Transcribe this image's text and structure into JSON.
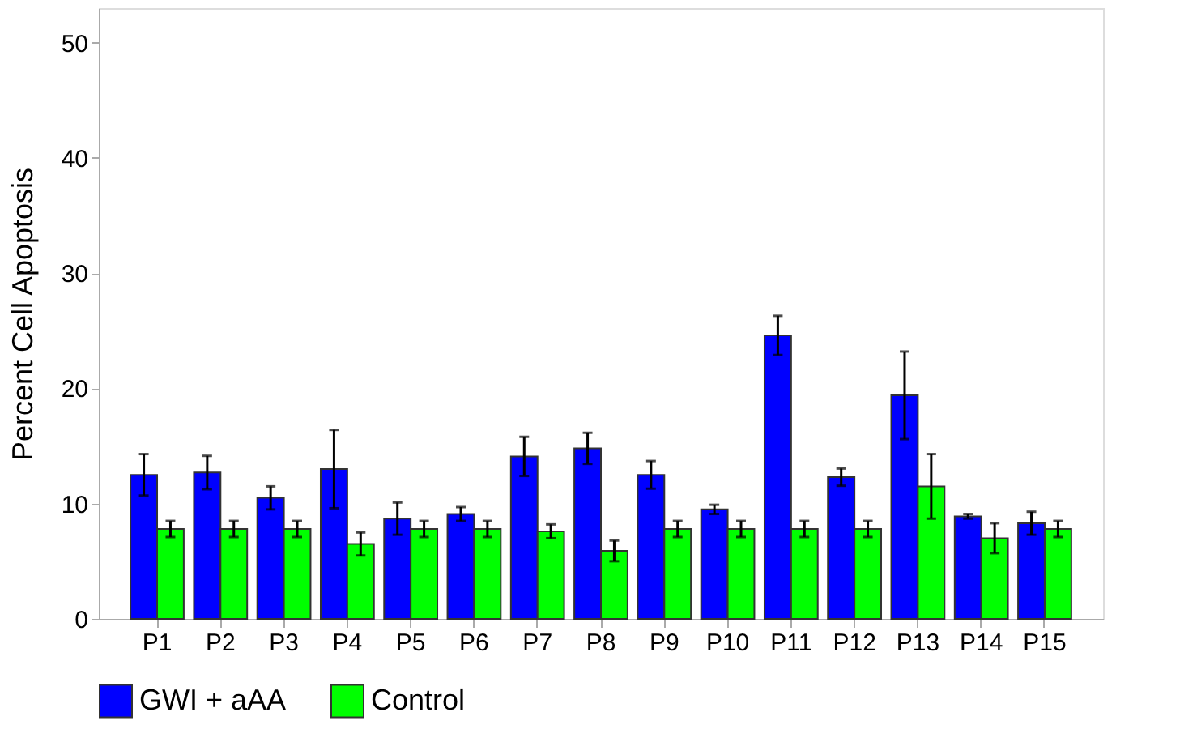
{
  "chart_data": {
    "type": "bar",
    "ylabel": "Percent Cell Apoptosis",
    "categories": [
      "P1",
      "P2",
      "P3",
      "P4",
      "P5",
      "P6",
      "P7",
      "P8",
      "P9",
      "P10",
      "P11",
      "P12",
      "P13",
      "P14",
      "P15"
    ],
    "series": [
      {
        "name": "GWI + aAA",
        "color": "#0000ff",
        "values": [
          12.5,
          12.7,
          10.5,
          13.0,
          8.7,
          9.1,
          14.1,
          14.8,
          12.5,
          9.5,
          24.6,
          12.3,
          19.4,
          8.9,
          8.3
        ],
        "errors": [
          1.8,
          1.45,
          1.0,
          3.4,
          1.4,
          0.6,
          1.7,
          1.35,
          1.2,
          0.4,
          1.7,
          0.75,
          3.8,
          0.2,
          1.0
        ]
      },
      {
        "name": "Control",
        "color": "#00ff00",
        "values": [
          7.8,
          7.8,
          7.8,
          6.5,
          7.8,
          7.8,
          7.6,
          5.9,
          7.8,
          7.8,
          7.8,
          7.8,
          11.5,
          7.0,
          7.8
        ],
        "errors": [
          0.7,
          0.7,
          0.7,
          1.0,
          0.7,
          0.7,
          0.6,
          0.9,
          0.7,
          0.7,
          0.7,
          0.7,
          2.8,
          1.3,
          0.7
        ]
      }
    ],
    "ylim": [
      0,
      53
    ],
    "yticks": [
      0,
      10,
      20,
      30,
      40,
      50
    ],
    "grid": false,
    "legend": "bottom"
  }
}
